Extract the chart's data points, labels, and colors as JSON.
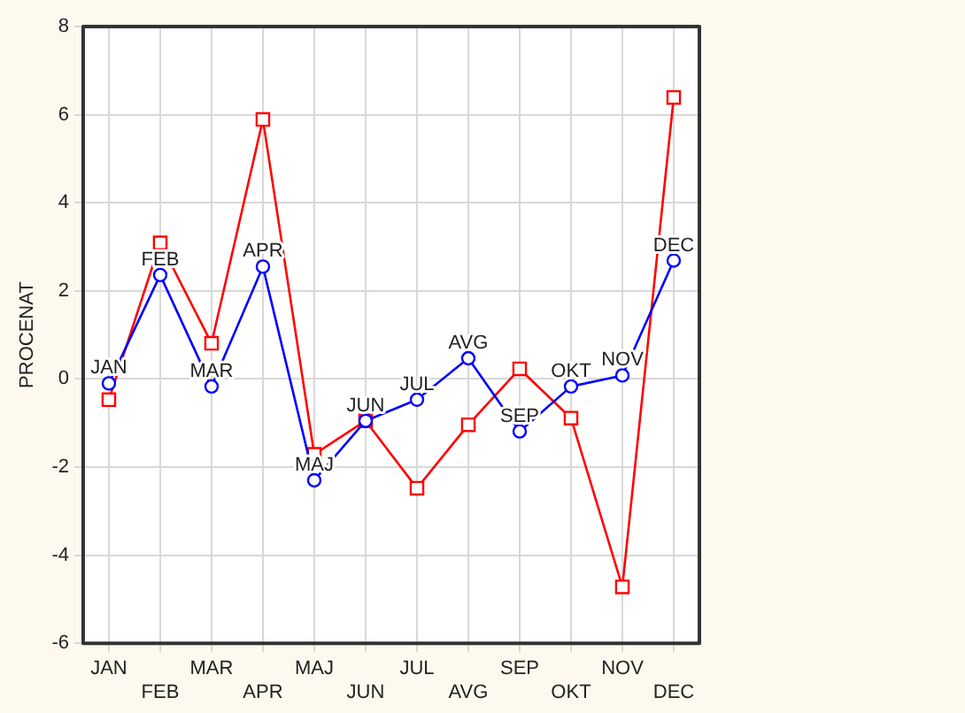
{
  "chart_data": {
    "type": "line",
    "ylabel": "PROCENAT",
    "categories": [
      "JAN",
      "FEB",
      "MAR",
      "APR",
      "MAJ",
      "JUN",
      "JUL",
      "AVG",
      "SEP",
      "OKT",
      "NOV",
      "DEC"
    ],
    "series": [
      {
        "color": "#0000ff",
        "marker": "circle",
        "values": [
          -0.1,
          2.36,
          -0.17,
          2.55,
          -2.3,
          -0.95,
          -0.47,
          0.47,
          -1.19,
          -0.17,
          0.08,
          2.69
        ]
      },
      {
        "color": "#ff0000",
        "marker": "square",
        "values": [
          -0.47,
          3.09,
          0.81,
          5.89,
          -1.71,
          -0.95,
          -2.48,
          -1.04,
          0.23,
          -0.89,
          -4.72,
          6.39
        ]
      }
    ],
    "ylim": [
      -6,
      8
    ],
    "yticks": [
      -6,
      -4,
      -2,
      0,
      2,
      4,
      6,
      8
    ],
    "grid": true,
    "legend": false,
    "line_style": "solid",
    "annotations": [
      {
        "text": "JAN",
        "x": "JAN",
        "y": -0.1
      },
      {
        "text": "FEB",
        "x": "FEB",
        "y": 2.36
      },
      {
        "text": "MAR",
        "x": "MAR",
        "y": -0.17
      },
      {
        "text": "APR",
        "x": "APR",
        "y": 2.55
      },
      {
        "text": "MAJ",
        "x": "MAJ",
        "y": -2.3
      },
      {
        "text": "JUN",
        "x": "JUN",
        "y": -0.95
      },
      {
        "text": "JUL",
        "x": "JUL",
        "y": -0.47
      },
      {
        "text": "AVG",
        "x": "AVG",
        "y": 0.47
      },
      {
        "text": "SEP",
        "x": "SEP",
        "y": -1.19
      },
      {
        "text": "OKT",
        "x": "OKT",
        "y": -0.17
      },
      {
        "text": "NOV",
        "x": "NOV",
        "y": 0.08
      },
      {
        "text": "DEC",
        "x": "DEC",
        "y": 2.69
      }
    ]
  }
}
